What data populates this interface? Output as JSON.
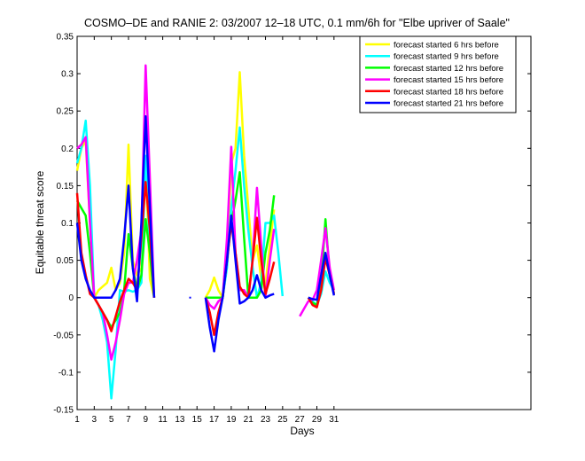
{
  "chart_data": {
    "type": "line",
    "title": "COSMO–DE and RANIE 2: 03/2007 12–18 UTC, 0.1 mm/6h for \"Elbe upriver of Saale\"",
    "xlabel": "Days",
    "ylabel": "Equitable threat score",
    "xlim": [
      1,
      54
    ],
    "ylim": [
      -0.15,
      0.35
    ],
    "xticks": [
      1,
      3,
      5,
      7,
      9,
      11,
      13,
      15,
      17,
      19,
      21,
      23,
      25,
      27,
      29,
      31
    ],
    "yticks": [
      -0.15,
      -0.1,
      -0.05,
      0,
      0.05,
      0.1,
      0.15,
      0.2,
      0.25,
      0.3,
      0.35
    ],
    "ytick_labels": [
      "-0.15",
      "-0.1",
      "-0.05",
      "0",
      "0.05",
      "0.1",
      "0.15",
      "0.2",
      "0.25",
      "0.3",
      "0.35"
    ],
    "grid": false,
    "legend_position": "top-right",
    "series": [
      {
        "name": "forecast started 6 hrs before",
        "color": "#ffff00",
        "x": [
          1,
          1.5,
          2,
          2.5,
          3,
          3.5,
          4,
          4.5,
          5,
          5.5,
          6,
          6.5,
          7,
          7.5,
          8,
          8.5,
          9,
          9.5,
          10,
          16,
          16.5,
          17,
          17.5,
          18,
          18.5,
          19,
          19.5,
          20,
          20.5,
          21,
          21.5,
          22,
          22.5,
          23,
          23.5,
          24
        ],
        "y": [
          0.17,
          0.2,
          0.21,
          0.1,
          0,
          0.01,
          0.015,
          0.02,
          0.04,
          0.01,
          0.02,
          0.06,
          0.205,
          0.05,
          0.03,
          0.04,
          0.18,
          0.025,
          0.0,
          0,
          0.01,
          0.027,
          0.01,
          0,
          0.06,
          0.18,
          0.2,
          0.302,
          0.19,
          0.12,
          0.05,
          0.07,
          0.025,
          0.018,
          0.07,
          0.118
        ]
      },
      {
        "name": "forecast started 9 hrs before",
        "color": "#00ffff",
        "x": [
          1,
          1.5,
          2,
          2.5,
          3,
          3.5,
          4,
          4.5,
          5,
          5.5,
          6,
          6.5,
          7,
          7.5,
          8,
          8.5,
          9,
          9.5,
          10,
          16,
          16.5,
          17,
          17.5,
          18,
          18.5,
          19,
          19.5,
          20,
          20.5,
          21,
          21.5,
          22,
          22.5,
          23,
          23.5,
          24,
          24.5,
          25,
          28,
          28.5,
          29,
          29.5,
          30,
          30.5,
          31
        ],
        "y": [
          0.18,
          0.2,
          0.237,
          0.15,
          0,
          -0.01,
          -0.03,
          -0.06,
          -0.135,
          -0.07,
          0.01,
          0.008,
          0.01,
          0.008,
          0.01,
          0.02,
          0.19,
          0.06,
          0.0,
          0,
          0,
          0,
          0,
          0,
          0.04,
          0.12,
          0.17,
          0.228,
          0.15,
          0.09,
          0.04,
          0.0,
          0.02,
          0.1,
          0.1,
          0.11,
          0.06,
          0.002,
          0,
          -0.005,
          -0.01,
          0.005,
          0.035,
          0.02,
          0.01
        ]
      },
      {
        "name": "forecast started 12 hrs before",
        "color": "#00ff00",
        "x": [
          1,
          1.5,
          2,
          2.5,
          3,
          3.5,
          4,
          4.5,
          5,
          5.5,
          6,
          6.5,
          7,
          7.5,
          8,
          8.5,
          9,
          9.5,
          10,
          16,
          16.5,
          17,
          17.5,
          18,
          18.5,
          19,
          19.5,
          20,
          20.5,
          21,
          21.5,
          22,
          22.5,
          23,
          23.5,
          24,
          28,
          28.5,
          29,
          29.5,
          30,
          30.5,
          31
        ],
        "y": [
          0.13,
          0.12,
          0.11,
          0.06,
          0,
          -0.01,
          -0.02,
          -0.03,
          -0.04,
          -0.03,
          -0.02,
          0.01,
          0.085,
          0.04,
          0.01,
          0.03,
          0.105,
          0.06,
          0.0,
          0,
          0,
          0,
          0,
          0,
          0.05,
          0.1,
          0.13,
          0.168,
          0.08,
          0.0,
          0,
          0,
          0.01,
          0.06,
          0.09,
          0.137,
          0,
          -0.007,
          -0.01,
          0.02,
          0.105,
          0.03,
          0.005
        ]
      },
      {
        "name": "forecast started 15 hrs before",
        "color": "#ff00ff",
        "x": [
          1,
          1.5,
          2,
          2.5,
          3,
          3.5,
          4,
          4.5,
          5,
          5.5,
          6,
          6.5,
          7,
          7.5,
          8,
          8.5,
          9,
          9.5,
          10,
          16,
          16.5,
          17,
          17.5,
          18,
          18.5,
          19,
          19.5,
          20,
          20.5,
          21,
          21.5,
          22,
          22.5,
          23,
          23.5,
          24,
          27,
          27.5,
          28,
          28.5,
          29,
          29.5,
          30,
          30.5,
          31
        ],
        "y": [
          0.2,
          0.205,
          0.215,
          0.1,
          0,
          -0.01,
          -0.02,
          -0.05,
          -0.083,
          -0.06,
          -0.03,
          0.005,
          0.02,
          0.02,
          0.05,
          0.09,
          0.311,
          0.16,
          0.0,
          0,
          -0.01,
          -0.015,
          -0.005,
          0,
          0.08,
          0.202,
          0.06,
          0.01,
          0.01,
          0,
          0.05,
          0.147,
          0.07,
          0.0,
          0.05,
          0.092,
          -0.025,
          -0.015,
          -0.005,
          -0.003,
          0.01,
          0.05,
          0.093,
          0.04,
          0.01
        ]
      },
      {
        "name": "forecast started 18 hrs before",
        "color": "#ff0000",
        "x": [
          1,
          1.5,
          2,
          2.5,
          3,
          3.5,
          4,
          4.5,
          5,
          5.5,
          6,
          6.5,
          7,
          7.5,
          8,
          8.5,
          9,
          9.5,
          10,
          16,
          16.5,
          17,
          17.5,
          18,
          18.5,
          19,
          19.5,
          20,
          20.5,
          21,
          21.5,
          22,
          22.5,
          23,
          23.5,
          24,
          28,
          28.5,
          29,
          29.5,
          30,
          30.5,
          31
        ],
        "y": [
          0.14,
          0.06,
          0.03,
          0.005,
          0,
          -0.01,
          -0.02,
          -0.03,
          -0.045,
          -0.025,
          -0.005,
          0.01,
          0.025,
          0.02,
          0.01,
          0.08,
          0.155,
          0.09,
          0.0,
          0,
          -0.02,
          -0.05,
          -0.02,
          0,
          0.05,
          0.1,
          0.06,
          0.015,
          0.005,
          0,
          0.05,
          0.107,
          0.05,
          0.005,
          0.025,
          0.048,
          0,
          -0.01,
          -0.013,
          0.01,
          0.053,
          0.03,
          0.005
        ]
      },
      {
        "name": "forecast started 21 hrs before",
        "color": "#0000ff",
        "x": [
          1,
          1.5,
          2,
          2.5,
          3,
          3.5,
          4,
          4.5,
          5,
          5.5,
          6,
          6.5,
          7,
          7.5,
          8,
          8.5,
          9,
          9.5,
          10,
          14.2,
          14.2,
          16,
          16.5,
          17,
          17.5,
          18,
          18.5,
          19,
          19.5,
          20,
          20.5,
          21,
          21.5,
          22,
          22.5,
          23,
          23.5,
          24,
          28,
          28.5,
          29,
          29.5,
          30,
          30.5,
          31
        ],
        "y": [
          0.1,
          0.05,
          0.025,
          0.01,
          0,
          0,
          0,
          0,
          0,
          0.01,
          0.025,
          0.08,
          0.15,
          0.04,
          -0.005,
          0.1,
          0.243,
          0.12,
          0.0,
          0,
          0,
          0,
          -0.04,
          -0.072,
          -0.03,
          0,
          0.05,
          0.11,
          0.05,
          -0.008,
          -0.005,
          0,
          0.01,
          0.03,
          0.01,
          0,
          0.003,
          0.005,
          0,
          -0.002,
          -0.003,
          0.03,
          0.06,
          0.03,
          0.003
        ]
      }
    ]
  }
}
